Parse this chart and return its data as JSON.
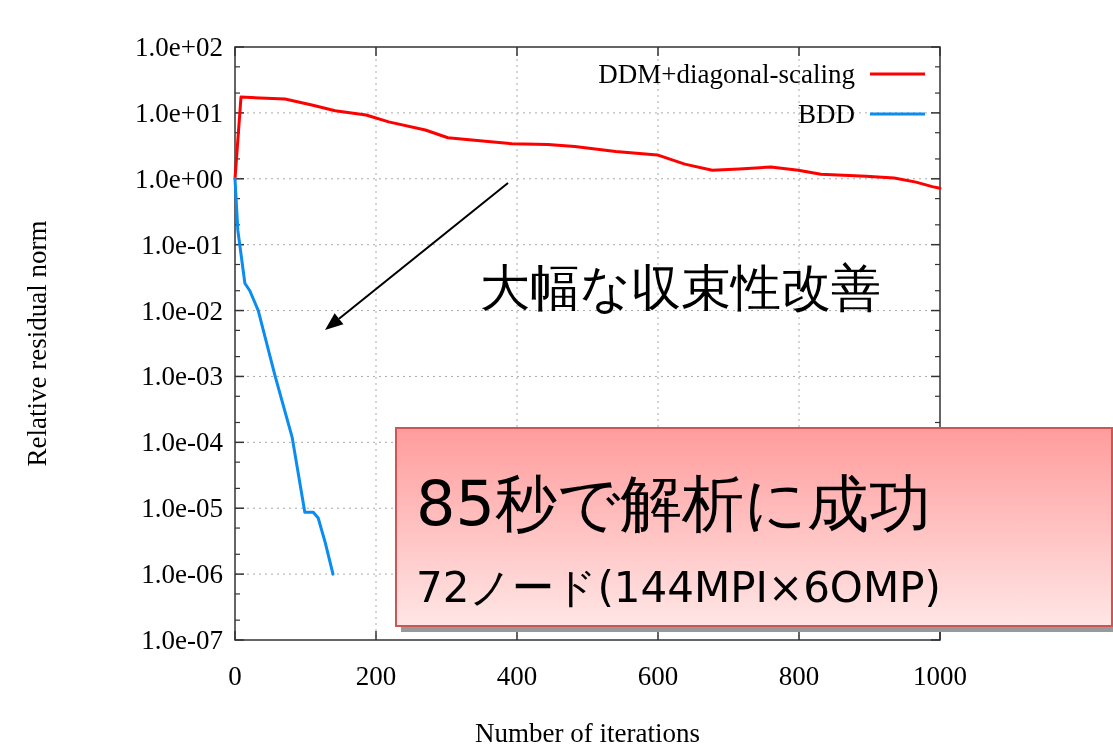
{
  "chart_data": {
    "type": "line",
    "xlabel": "Number of iterations",
    "ylabel": "Relative residual norm",
    "log": "y",
    "xlim": [
      0,
      1000
    ],
    "xticks": [
      0,
      200,
      400,
      600,
      800,
      1000
    ],
    "ylim": [
      1e-07,
      100
    ],
    "yticks": [
      {
        "value": 1e-07,
        "label": "1.0e-07"
      },
      {
        "value": 1e-06,
        "label": "1.0e-06"
      },
      {
        "value": 1e-05,
        "label": "1.0e-05"
      },
      {
        "value": 0.0001,
        "label": "1.0e-04"
      },
      {
        "value": 0.001,
        "label": "1.0e-03"
      },
      {
        "value": 0.01,
        "label": "1.0e-02"
      },
      {
        "value": 0.1,
        "label": "1.0e-01"
      },
      {
        "value": 1,
        "label": "1.0e+00"
      },
      {
        "value": 10,
        "label": "1.0e+01"
      },
      {
        "value": 100,
        "label": "1.0e+02"
      }
    ],
    "grid": true,
    "legend": "top right",
    "line_style": "solid",
    "marker": "none",
    "series": [
      {
        "name": "DDM+diagonal-scaling",
        "color": "#ff0000",
        "x": [
          0,
          8.5,
          71,
          109,
          142,
          186,
          218,
          270,
          302,
          355,
          393,
          444,
          482,
          540,
          599,
          638,
          677,
          715,
          760,
          799,
          831,
          895,
          935,
          966,
          989,
          1000
        ],
        "values": [
          1,
          17.4,
          16.2,
          13.2,
          10.8,
          9.3,
          7.3,
          5.5,
          4.2,
          3.7,
          3.4,
          3.3,
          3.1,
          2.6,
          2.3,
          1.67,
          1.35,
          1.41,
          1.51,
          1.35,
          1.17,
          1.09,
          1.03,
          0.89,
          0.76,
          0.72
        ]
      },
      {
        "name": "BDD",
        "color": "#0a8cf0",
        "x": [
          0,
          4,
          14,
          21,
          33,
          57,
          81,
          99,
          111,
          118,
          128,
          139
        ],
        "values": [
          1,
          0.166,
          0.026,
          0.02,
          0.01,
          0.001,
          0.00012,
          8.7e-06,
          8.7e-06,
          7.1e-06,
          3e-06,
          1e-06
        ]
      }
    ],
    "annotations": [
      "大幅な収束性改善",
      "85秒で解析に成功",
      "72ノード(144MPI×6OMP)"
    ]
  }
}
